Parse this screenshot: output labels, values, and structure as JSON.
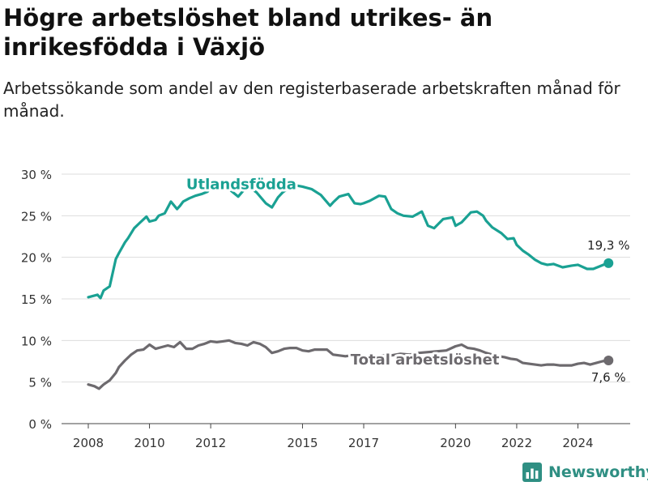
{
  "title": "Högre arbetslöshet bland utrikes- än inrikesfödda i Växjö",
  "subtitle": "Arbetssökande som andel av den registerbaserade arbetskraften månad för månad.",
  "brand": {
    "name": "Newsworthy",
    "color": "#2f8f83"
  },
  "chart_data": {
    "type": "line",
    "xlabel": "",
    "ylabel": "",
    "xlim": [
      2007.5,
      2025.5
    ],
    "ylim": [
      0,
      30
    ],
    "grid": true,
    "y_ticks": [
      0,
      5,
      10,
      15,
      20,
      25,
      30
    ],
    "y_tick_labels": [
      "0 %",
      "5 %",
      "10 %",
      "15 %",
      "20 %",
      "25 %",
      "30 %"
    ],
    "x_ticks": [
      2008,
      2010,
      2012,
      2015,
      2017,
      2020,
      2022,
      2024
    ],
    "x_tick_labels": [
      "2008",
      "2010",
      "2012",
      "2015",
      "2017",
      "2020",
      "2022",
      "2024"
    ],
    "series": [
      {
        "name": "Utlandsfödda",
        "color": "#1aa193",
        "end_label": "19,3 %",
        "x": [
          2008.0,
          2008.3,
          2008.4,
          2008.5,
          2008.7,
          2008.9,
          2009.0,
          2009.2,
          2009.3,
          2009.5,
          2009.7,
          2009.9,
          2010.0,
          2010.2,
          2010.3,
          2010.5,
          2010.7,
          2010.9,
          2011.0,
          2011.1,
          2011.3,
          2011.5,
          2011.7,
          2011.9,
          2012.0,
          2012.3,
          2012.6,
          2012.9,
          2013.2,
          2013.5,
          2013.8,
          2014.0,
          2014.2,
          2014.35,
          2014.5,
          2014.7,
          2015.0,
          2015.3,
          2015.6,
          2015.9,
          2016.0,
          2016.2,
          2016.5,
          2016.7,
          2016.9,
          2017.0,
          2017.2,
          2017.5,
          2017.7,
          2017.9,
          2018.1,
          2018.3,
          2018.6,
          2018.9,
          2019.1,
          2019.3,
          2019.6,
          2019.9,
          2020.0,
          2020.2,
          2020.5,
          2020.7,
          2020.9,
          2021.0,
          2021.2,
          2021.5,
          2021.7,
          2021.9,
          2022.0,
          2022.2,
          2022.4,
          2022.6,
          2022.8,
          2023.0,
          2023.2,
          2023.5,
          2023.8,
          2024.0,
          2024.3,
          2024.5,
          2024.7,
          2024.9,
          2025.0
        ],
        "values": [
          15.2,
          15.5,
          15.1,
          16.0,
          16.5,
          19.8,
          20.5,
          21.8,
          22.3,
          23.5,
          24.2,
          24.9,
          24.3,
          24.5,
          25.0,
          25.3,
          26.7,
          25.8,
          26.2,
          26.7,
          27.1,
          27.4,
          27.6,
          27.9,
          28.4,
          28.8,
          28.2,
          27.3,
          28.6,
          27.8,
          26.5,
          26.0,
          27.2,
          27.8,
          28.2,
          28.7,
          28.5,
          28.2,
          27.5,
          26.2,
          26.6,
          27.3,
          27.6,
          26.5,
          26.4,
          26.5,
          26.8,
          27.4,
          27.3,
          25.8,
          25.3,
          25.0,
          24.9,
          25.5,
          23.8,
          23.5,
          24.6,
          24.8,
          23.8,
          24.2,
          25.4,
          25.5,
          25.0,
          24.4,
          23.6,
          22.9,
          22.2,
          22.3,
          21.5,
          20.8,
          20.3,
          19.7,
          19.3,
          19.1,
          19.2,
          18.8,
          19.0,
          19.1,
          18.6,
          18.6,
          18.9,
          19.2,
          19.3
        ]
      },
      {
        "name": "Total arbetslöshet",
        "color": "#6d6a6e",
        "end_label": "7,6 %",
        "x": [
          2008.0,
          2008.2,
          2008.35,
          2008.5,
          2008.7,
          2008.9,
          2009.0,
          2009.2,
          2009.4,
          2009.6,
          2009.8,
          2010.0,
          2010.2,
          2010.4,
          2010.6,
          2010.8,
          2011.0,
          2011.2,
          2011.4,
          2011.6,
          2011.8,
          2012.0,
          2012.2,
          2012.4,
          2012.6,
          2012.8,
          2013.0,
          2013.2,
          2013.4,
          2013.6,
          2013.8,
          2014.0,
          2014.2,
          2014.4,
          2014.6,
          2014.8,
          2015.0,
          2015.2,
          2015.4,
          2015.6,
          2015.8,
          2016.0,
          2016.2,
          2016.4,
          2016.6,
          2016.8,
          2017.0,
          2017.3,
          2017.6,
          2017.9,
          2018.2,
          2018.5,
          2018.8,
          2019.1,
          2019.4,
          2019.7,
          2020.0,
          2020.2,
          2020.4,
          2020.6,
          2020.8,
          2021.0,
          2021.2,
          2021.4,
          2021.6,
          2021.8,
          2022.0,
          2022.2,
          2022.4,
          2022.6,
          2022.8,
          2023.0,
          2023.2,
          2023.4,
          2023.6,
          2023.8,
          2024.0,
          2024.2,
          2024.4,
          2024.6,
          2024.8,
          2025.0
        ],
        "values": [
          4.7,
          4.5,
          4.2,
          4.7,
          5.2,
          6.1,
          6.8,
          7.6,
          8.3,
          8.8,
          8.9,
          9.5,
          9.0,
          9.2,
          9.4,
          9.2,
          9.8,
          9.0,
          9.0,
          9.4,
          9.6,
          9.9,
          9.8,
          9.9,
          10.0,
          9.7,
          9.6,
          9.4,
          9.8,
          9.6,
          9.2,
          8.5,
          8.7,
          9.0,
          9.1,
          9.1,
          8.8,
          8.7,
          8.9,
          8.9,
          8.9,
          8.3,
          8.2,
          8.1,
          8.2,
          8.0,
          8.0,
          8.1,
          8.2,
          8.2,
          8.4,
          8.3,
          8.5,
          8.6,
          8.7,
          8.8,
          9.3,
          9.5,
          9.1,
          9.0,
          8.8,
          8.5,
          8.3,
          8.1,
          8.0,
          7.8,
          7.7,
          7.3,
          7.2,
          7.1,
          7.0,
          7.1,
          7.1,
          7.0,
          7.0,
          7.0,
          7.2,
          7.3,
          7.1,
          7.3,
          7.5,
          7.6
        ]
      }
    ],
    "annotations": [
      {
        "series": 0,
        "text": "Utlandsfödda",
        "x": 2013.0,
        "y": 28.8
      },
      {
        "series": 1,
        "text": "Total arbetslöshet",
        "x": 2019.0,
        "y": 7.7
      }
    ]
  }
}
